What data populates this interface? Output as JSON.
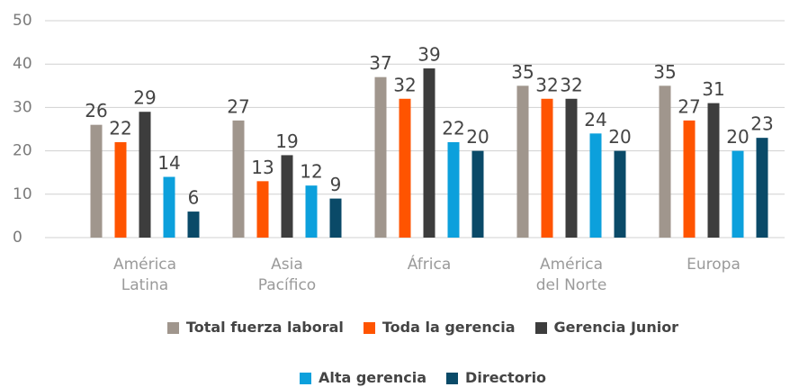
{
  "chart_data": {
    "type": "bar",
    "categories": [
      "América Latina",
      "Asia Pacífico",
      "África",
      "América del Norte",
      "Europa"
    ],
    "series": [
      {
        "name": "Total fuerza laboral",
        "color": "#a0968d",
        "values": [
          26,
          27,
          37,
          35,
          35
        ]
      },
      {
        "name": "Toda la gerencia",
        "color": "#ff5400",
        "values": [
          22,
          13,
          32,
          32,
          27
        ]
      },
      {
        "name": "Gerencia Junior",
        "color": "#3d3d3d",
        "values": [
          29,
          19,
          39,
          32,
          31
        ]
      },
      {
        "name": "Alta gerencia",
        "color": "#0ca0dc",
        "values": [
          14,
          12,
          22,
          24,
          20
        ]
      },
      {
        "name": "Directorio",
        "color": "#0a4a68",
        "values": [
          6,
          9,
          20,
          20,
          23
        ]
      }
    ],
    "ylim": [
      0,
      50
    ],
    "yticks": [
      0,
      10,
      20,
      30,
      40,
      50
    ],
    "grid": true,
    "legend": "bottom"
  }
}
